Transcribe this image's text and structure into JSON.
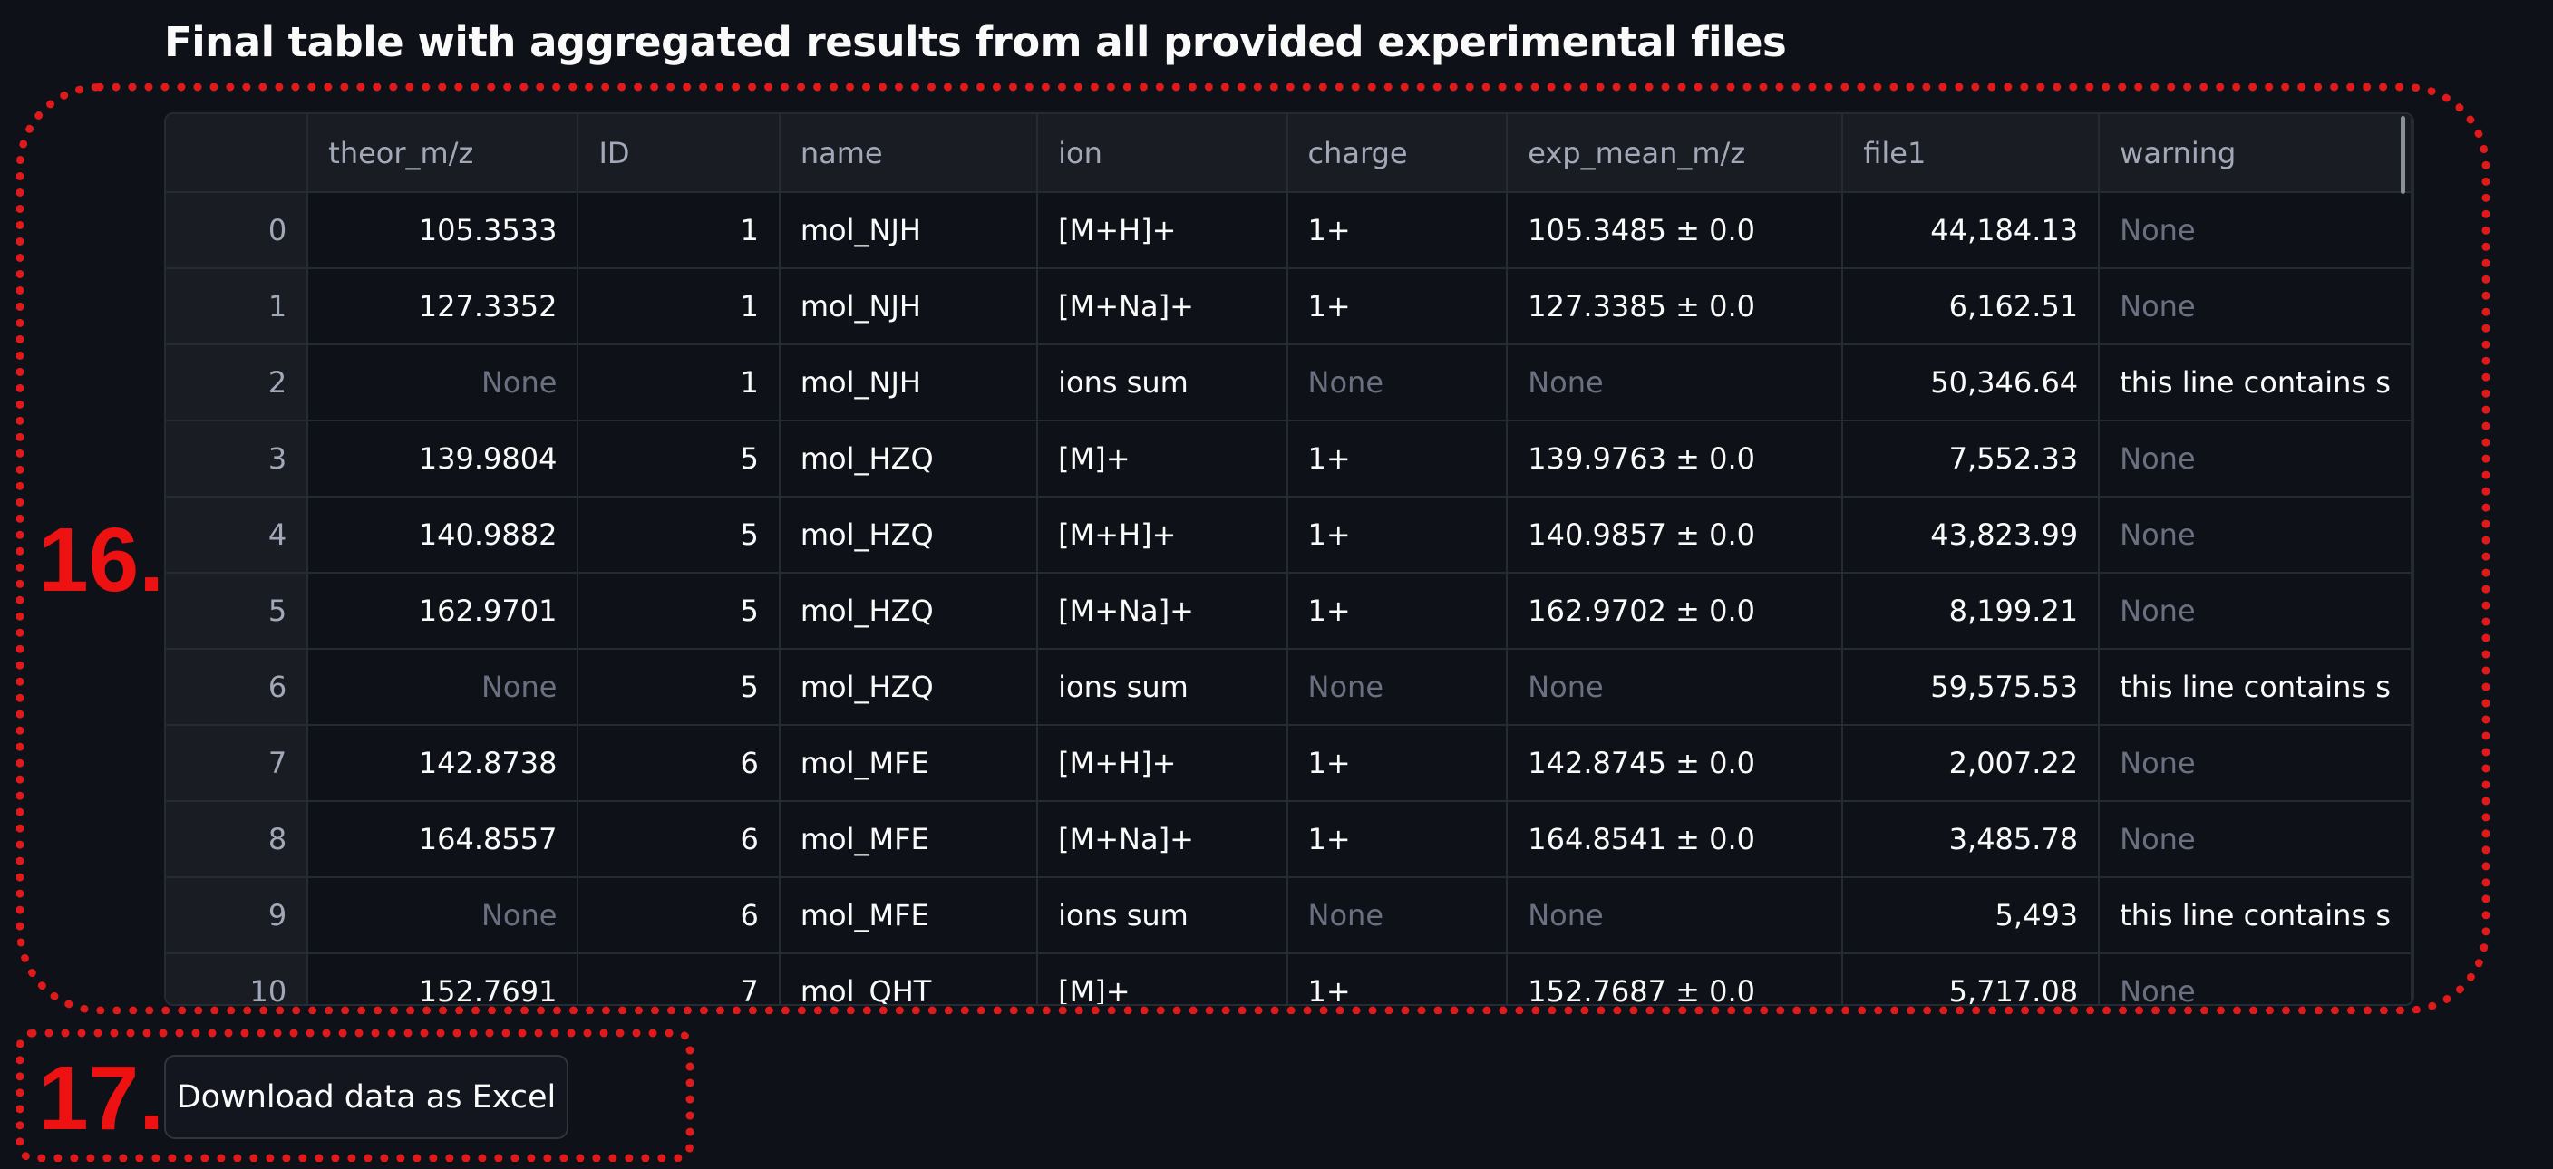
{
  "heading": "Final table with aggregated results from all provided experimental files",
  "annotations": {
    "table_label": "16.",
    "button_label": "17."
  },
  "table": {
    "columns": [
      "",
      "theor_m/z",
      "ID",
      "name",
      "ion",
      "charge",
      "exp_mean_m/z",
      "file1",
      "warning"
    ],
    "rows": [
      [
        "0",
        "105.3533",
        "1",
        "mol_NJH",
        "[M+H]+",
        "1+",
        "105.3485 ± 0.0",
        "44,184.13",
        "None"
      ],
      [
        "1",
        "127.3352",
        "1",
        "mol_NJH",
        "[M+Na]+",
        "1+",
        "127.3385 ± 0.0",
        "6,162.51",
        "None"
      ],
      [
        "2",
        "None",
        "1",
        "mol_NJH",
        "ions sum",
        "None",
        "None",
        "50,346.64",
        "this line contains s"
      ],
      [
        "3",
        "139.9804",
        "5",
        "mol_HZQ",
        "[M]+",
        "1+",
        "139.9763 ± 0.0",
        "7,552.33",
        "None"
      ],
      [
        "4",
        "140.9882",
        "5",
        "mol_HZQ",
        "[M+H]+",
        "1+",
        "140.9857 ± 0.0",
        "43,823.99",
        "None"
      ],
      [
        "5",
        "162.9701",
        "5",
        "mol_HZQ",
        "[M+Na]+",
        "1+",
        "162.9702 ± 0.0",
        "8,199.21",
        "None"
      ],
      [
        "6",
        "None",
        "5",
        "mol_HZQ",
        "ions sum",
        "None",
        "None",
        "59,575.53",
        "this line contains s"
      ],
      [
        "7",
        "142.8738",
        "6",
        "mol_MFE",
        "[M+H]+",
        "1+",
        "142.8745 ± 0.0",
        "2,007.22",
        "None"
      ],
      [
        "8",
        "164.8557",
        "6",
        "mol_MFE",
        "[M+Na]+",
        "1+",
        "164.8541 ± 0.0",
        "3,485.78",
        "None"
      ],
      [
        "9",
        "None",
        "6",
        "mol_MFE",
        "ions sum",
        "None",
        "None",
        "5,493",
        "this line contains s"
      ],
      [
        "10",
        "152.7691",
        "7",
        "mol_QHT",
        "[M]+",
        "1+",
        "152.7687 ± 0.0",
        "5,717.08",
        "None"
      ]
    ]
  },
  "download_button": {
    "label": "Download data as Excel"
  }
}
